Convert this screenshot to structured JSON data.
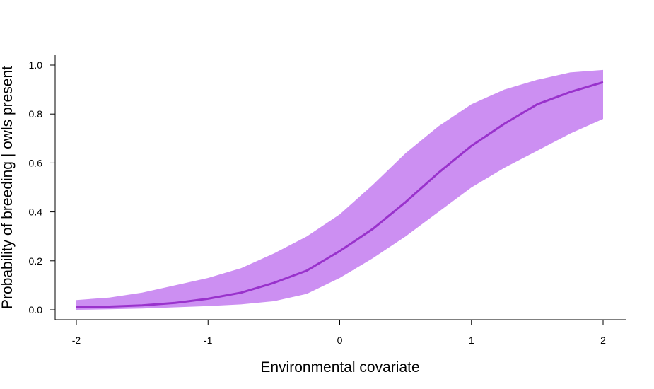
{
  "chart_data": {
    "type": "area",
    "xlabel": "Environmental covariate",
    "ylabel": "Probability of breeding | owls present",
    "xlim": [
      -2,
      2
    ],
    "ylim": [
      0,
      1
    ],
    "x_ticks": [
      -2,
      -1,
      0,
      1,
      2
    ],
    "y_ticks": [
      0.0,
      0.2,
      0.4,
      0.6,
      0.8,
      1.0
    ],
    "grid": false,
    "colors": {
      "line": "#9932CC",
      "band": "#CC8FF2",
      "axis": "#000000"
    },
    "series": [
      {
        "kind": "line",
        "x": [
          -2.0,
          -1.75,
          -1.5,
          -1.25,
          -1.0,
          -0.75,
          -0.5,
          -0.25,
          0.0,
          0.25,
          0.5,
          0.75,
          1.0,
          1.25,
          1.5,
          1.75,
          2.0
        ],
        "y": [
          0.01,
          0.013,
          0.018,
          0.028,
          0.045,
          0.07,
          0.11,
          0.16,
          0.24,
          0.33,
          0.44,
          0.56,
          0.67,
          0.76,
          0.84,
          0.89,
          0.93
        ]
      },
      {
        "kind": "band",
        "x": [
          -2.0,
          -1.75,
          -1.5,
          -1.25,
          -1.0,
          -0.75,
          -0.5,
          -0.25,
          0.0,
          0.25,
          0.5,
          0.75,
          1.0,
          1.25,
          1.5,
          1.75,
          2.0
        ],
        "lower": [
          0.0,
          0.002,
          0.005,
          0.01,
          0.015,
          0.022,
          0.035,
          0.065,
          0.13,
          0.21,
          0.3,
          0.4,
          0.5,
          0.58,
          0.65,
          0.72,
          0.78
        ],
        "upper": [
          0.04,
          0.05,
          0.07,
          0.1,
          0.13,
          0.17,
          0.23,
          0.3,
          0.39,
          0.51,
          0.64,
          0.75,
          0.84,
          0.9,
          0.94,
          0.97,
          0.98
        ]
      }
    ]
  }
}
